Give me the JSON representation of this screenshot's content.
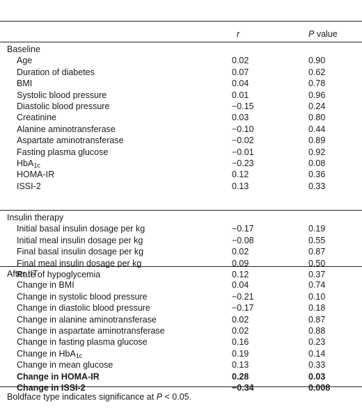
{
  "header": {
    "col_r": "r",
    "col_p_italic": "P",
    "col_p_rest": " value"
  },
  "sections": [
    {
      "title": "Baseline",
      "rows": [
        {
          "label": "Age",
          "r": "0.02",
          "p": "0.90"
        },
        {
          "label": "Duration of diabetes",
          "r": "0.07",
          "p": "0.62"
        },
        {
          "label": "BMI",
          "r": "0.04",
          "p": "0.78"
        },
        {
          "label": "Systolic blood pressure",
          "r": "0.01",
          "p": "0.96"
        },
        {
          "label": "Diastolic blood pressure",
          "r": "−0.15",
          "p": "0.24"
        },
        {
          "label": "Creatinine",
          "r": "0.03",
          "p": "0.80"
        },
        {
          "label": "Alanine aminotransferase",
          "r": "−0.10",
          "p": "0.44"
        },
        {
          "label": "Aspartate aminotransferase",
          "r": "−0.02",
          "p": "0.89"
        },
        {
          "label": "Fasting plasma glucose",
          "r": "−0.01",
          "p": "0.92"
        },
        {
          "label": "HbA",
          "sub": "1c",
          "r": "−0.23",
          "p": "0.08"
        },
        {
          "label": "HOMA-IR",
          "r": "0.12",
          "p": "0.36"
        },
        {
          "label": "ISSI-2",
          "r": "0.13",
          "p": "0.33"
        }
      ]
    },
    {
      "title": "Insulin therapy",
      "rows": [
        {
          "label": "Initial basal insulin dosage per kg",
          "r": "−0.17",
          "p": "0.19"
        },
        {
          "label": "Initial meal insulin dosage per kg",
          "r": "−0.08",
          "p": "0.55"
        },
        {
          "label": "Final basal insulin dosage per kg",
          "r": "0.02",
          "p": "0.87"
        },
        {
          "label": "Final meal insulin dosage per kg",
          "r": "0.09",
          "p": "0.50"
        },
        {
          "label": "Rate of hypoglycemia",
          "r": "0.12",
          "p": "0.37"
        }
      ]
    },
    {
      "title": "After IIT",
      "rows": [
        {
          "label": "Change in BMI",
          "r": "0.04",
          "p": "0.74"
        },
        {
          "label": "Change in systolic blood pressure",
          "r": "−0.21",
          "p": "0.10"
        },
        {
          "label": "Change in diastolic blood pressure",
          "r": "−0.17",
          "p": "0.18"
        },
        {
          "label": "Change in alanine aminotransferase",
          "r": "0.02",
          "p": "0.87"
        },
        {
          "label": "Change in aspartate aminotransferase",
          "r": "0.02",
          "p": "0.88"
        },
        {
          "label": "Change in fasting plasma glucose",
          "r": "0.16",
          "p": "0.23"
        },
        {
          "label": "Change in HbA",
          "sub": "1c",
          "r": "0.19",
          "p": "0.14"
        },
        {
          "label": "Change in mean glucose",
          "r": "0.13",
          "p": "0.33"
        },
        {
          "label": "Change in HOMA-IR",
          "r": "0.28",
          "p": "0.03",
          "bold": true
        },
        {
          "label": "Change in ISSI-2",
          "r": "−0.34",
          "p": "0.008",
          "bold": true
        }
      ]
    }
  ],
  "footnote": {
    "before": "Boldface type indicates significance at ",
    "italic": "P",
    "after": " < 0.05."
  }
}
